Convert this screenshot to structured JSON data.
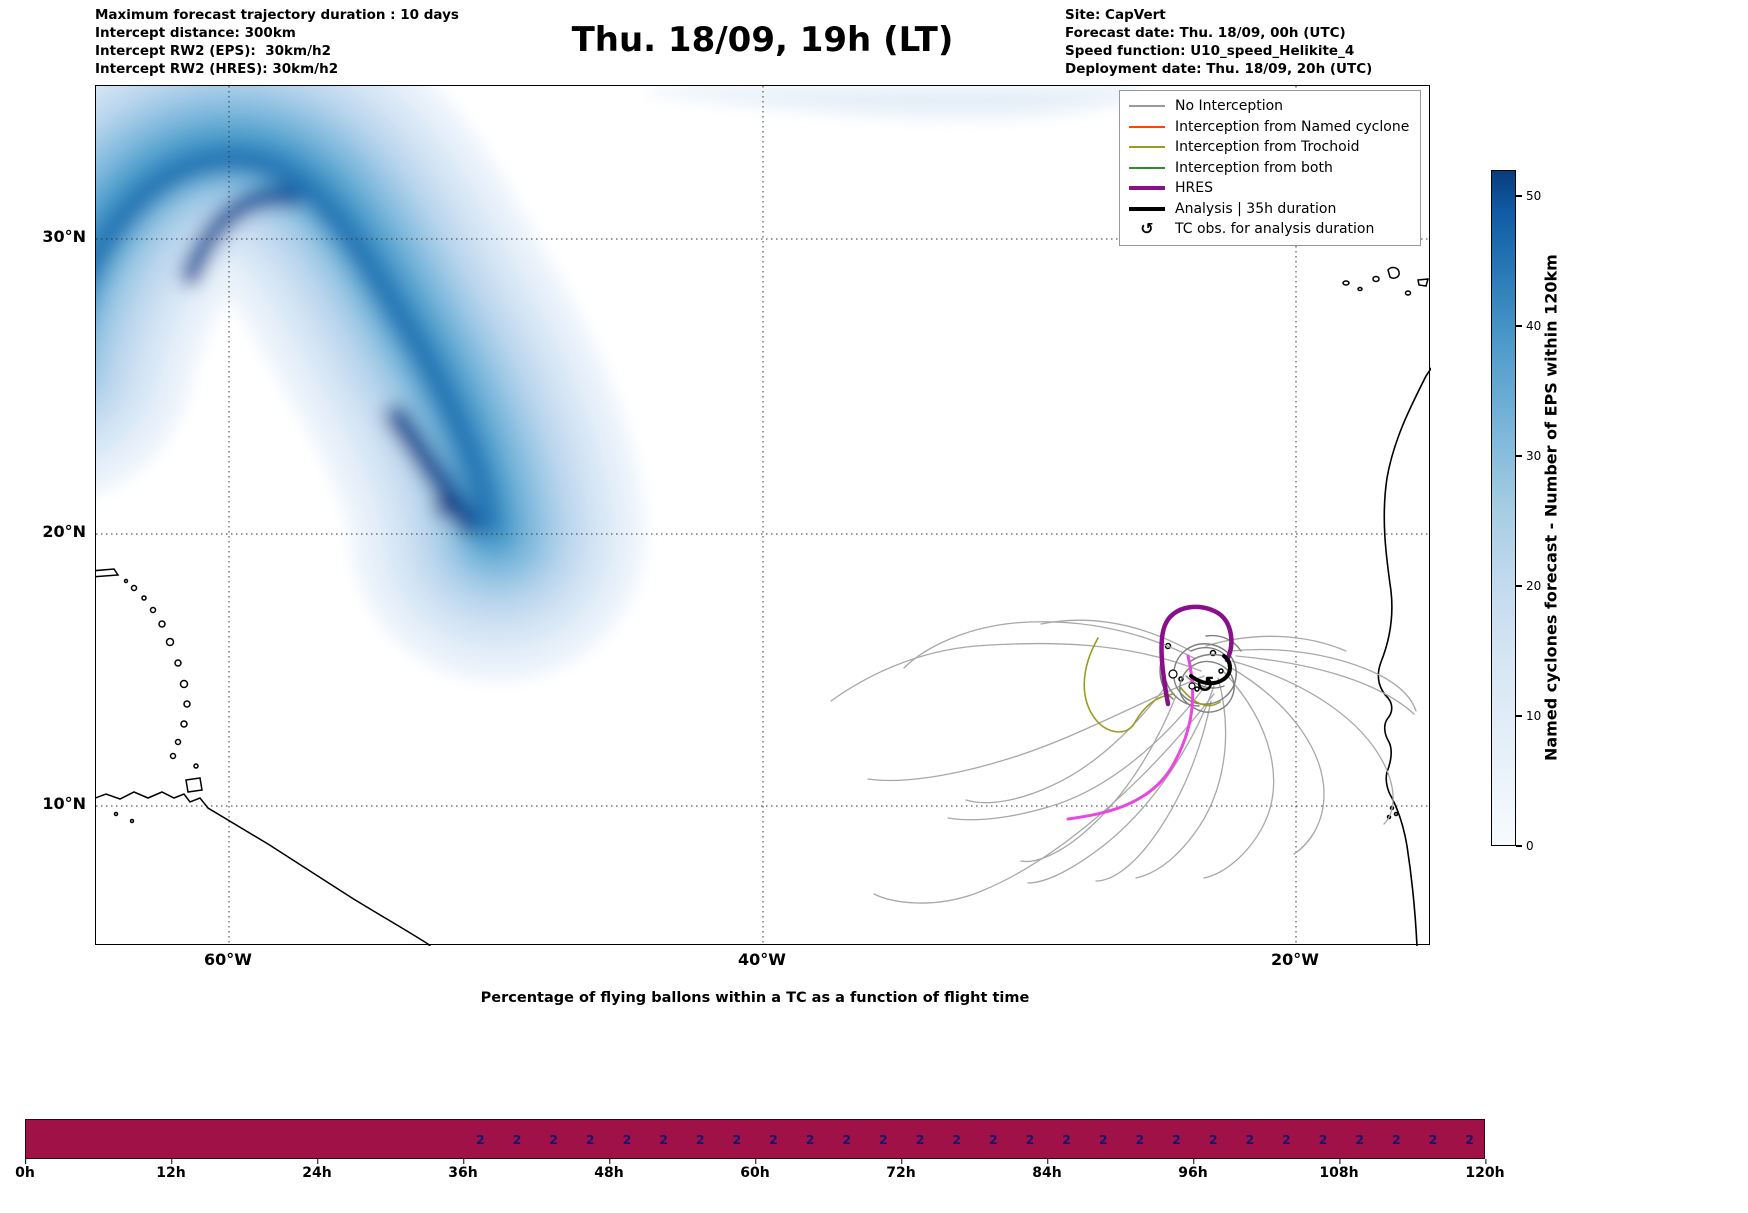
{
  "header": {
    "left_lines": [
      "Maximum forecast trajectory duration : 10 days",
      "Intercept distance: 300km",
      "Intercept RW2 (EPS):  30km/h2",
      "Intercept RW2 (HRES): 30km/h2"
    ],
    "title": "Thu. 18/09, 19h (LT)",
    "right_lines": [
      "Site: CapVert",
      "Forecast date: Thu. 18/09, 00h (UTC)",
      "Speed function: U10_speed_Helikite_4",
      "Deployment date: Thu. 18/09, 20h (UTC)"
    ]
  },
  "map": {
    "lat_labels": [
      "30°N",
      "20°N",
      "10°N"
    ],
    "lon_labels": [
      "60°W",
      "40°W",
      "20°W"
    ],
    "tc_symbol": "↺",
    "legend": [
      {
        "label": "No Interception",
        "color": "#999999",
        "style": "thin"
      },
      {
        "label": "Interception from Named cyclone",
        "color": "#ff4500",
        "style": "thin"
      },
      {
        "label": "Interception from Trochoid",
        "color": "#9b9b1f",
        "style": "thin"
      },
      {
        "label": "Interception from both",
        "color": "#2e8b2e",
        "style": "thin"
      },
      {
        "label": "HRES",
        "color": "#8a0f8a",
        "style": "thick"
      },
      {
        "label": "Analysis | 35h duration",
        "color": "#000000",
        "style": "thick"
      },
      {
        "label": "TC obs. for analysis duration",
        "color": "#000000",
        "style": "symbol",
        "symbol": "↺"
      }
    ]
  },
  "colorbar": {
    "label": "Named cyclones forecast - Number of EPS within 120km",
    "ticks": [
      "50",
      "40",
      "30",
      "20",
      "10",
      "0"
    ]
  },
  "bottom_chart": {
    "title": "Percentage of flying ballons within a TC as a function of flight time",
    "x_ticks": [
      "0h",
      "12h",
      "24h",
      "36h",
      "48h",
      "60h",
      "72h",
      "84h",
      "96h",
      "108h",
      "120h"
    ],
    "bar_color": "#a01148",
    "bar_values": [
      "2",
      "2",
      "2",
      "2",
      "2",
      "2",
      "2",
      "2",
      "2",
      "2",
      "2",
      "2",
      "2",
      "2",
      "2",
      "2",
      "2",
      "2",
      "2",
      "2",
      "2",
      "2",
      "2",
      "2",
      "2",
      "2",
      "2",
      "2"
    ]
  },
  "chart_data": [
    {
      "type": "heatmap",
      "title": "Thu. 18/09, 19h (LT)",
      "x_tick_labels": [
        "60°W",
        "40°W",
        "20°W"
      ],
      "y_tick_labels": [
        "30°N",
        "20°N",
        "10°N"
      ],
      "lon_range": [
        "65°W",
        "15°W"
      ],
      "lat_range": [
        "5°N",
        "35°N"
      ],
      "grid": true,
      "colorbar_label": "Named cyclones forecast - Number of EPS within 120km",
      "colorbar_ticks": [
        0,
        10,
        20,
        30,
        40,
        50
      ],
      "colorbar_range": [
        0,
        52
      ],
      "density_swath": {
        "description": "Blue shaded density of EPS named-cyclone forecasts, arc-shaped swath",
        "approx_track_lon_lat": [
          [
            -65,
            27
          ],
          [
            -62,
            31
          ],
          [
            -58,
            29
          ],
          [
            -55,
            25
          ],
          [
            -52,
            22
          ],
          [
            -50,
            21
          ]
        ],
        "peak_value_approx": 50,
        "secondary_light_band": "faint band along top edge ~34-35°N between 44°W and 27°W"
      },
      "trajectories": {
        "cluster_center_lon_lat": [
          -22.5,
          15
        ],
        "spread": "grey balloon trajectories spread W/SW toward 35°W-28°W, 9°N-13°N",
        "no_interception_color": "#a8a8a8",
        "named_cyclone_color": "#ff4500",
        "trochoid_color": "#9b9b1f",
        "both_color": "#2e8b2e",
        "hres_color": "#8a0f8a",
        "analysis_color": "#000000",
        "magenta_deployment_track": "from cluster ~(-22.5,15) south-west to ~(-26.5,9.5)",
        "tc_obs_symbol": "↺"
      }
    },
    {
      "type": "bar",
      "title": "Percentage of flying ballons within a TC as a function of flight time",
      "x_tick_labels": [
        "0h",
        "12h",
        "24h",
        "36h",
        "48h",
        "60h",
        "72h",
        "84h",
        "96h",
        "108h",
        "120h"
      ],
      "x_range_hours": [
        0,
        120
      ],
      "bar_color": "#a01148",
      "bar_coverage": "continuous full-height band from 0h to 120h",
      "value_labels": {
        "text": "2",
        "from_hour": 37.5,
        "to_hour": 118.5,
        "step_hours": 3,
        "count": 28
      }
    }
  ]
}
